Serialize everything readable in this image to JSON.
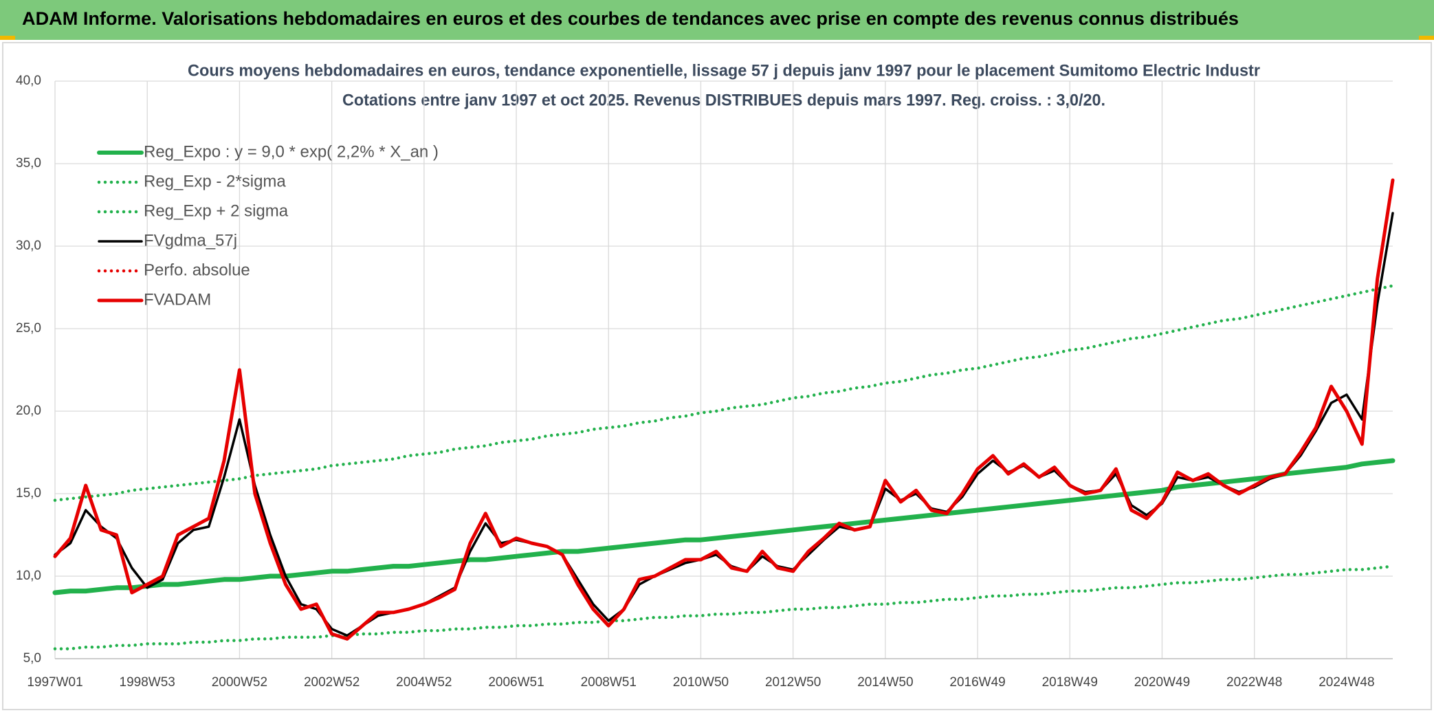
{
  "banner": "ADAM Informe. Valorisations hebdomadaires en euros et des courbes de tendances avec prise en compte des revenus connus distribués",
  "chart_data": {
    "type": "line",
    "title": "Cours moyens hebdomadaires en euros, tendance exponentielle, lissage 57 j depuis janv 1997 pour le placement Sumitomo Electric Industr",
    "subtitle": "Cotations entre janv 1997 et oct 2025. Revenus DISTRIBUES depuis mars 1997. Reg. croiss. : 3,0/20.",
    "categories": [
      "1997W01",
      null,
      null,
      null,
      null,
      null,
      "1998W53",
      null,
      null,
      null,
      null,
      null,
      "2000W52",
      null,
      null,
      null,
      null,
      null,
      "2002W52",
      null,
      null,
      null,
      null,
      null,
      "2004W52",
      null,
      null,
      null,
      null,
      null,
      "2006W51",
      null,
      null,
      null,
      null,
      null,
      "2008W51",
      null,
      null,
      null,
      null,
      null,
      "2010W50",
      null,
      null,
      null,
      null,
      null,
      "2012W50",
      null,
      null,
      null,
      null,
      null,
      "2014W50",
      null,
      null,
      null,
      null,
      null,
      "2016W49",
      null,
      null,
      null,
      null,
      null,
      "2018W49",
      null,
      null,
      null,
      null,
      null,
      "2020W49",
      null,
      null,
      null,
      null,
      null,
      "2022W48",
      null,
      null,
      null,
      null,
      null,
      "2024W48",
      null,
      null,
      null
    ],
    "ylim": [
      5,
      40
    ],
    "yticks": [
      {
        "value": 5,
        "label": "5,0"
      },
      {
        "value": 10,
        "label": "10,0"
      },
      {
        "value": 15,
        "label": "15,0"
      },
      {
        "value": 20,
        "label": "20,0"
      },
      {
        "value": 25,
        "label": "25,0"
      },
      {
        "value": 30,
        "label": "30,0"
      },
      {
        "value": 35,
        "label": "35,0"
      },
      {
        "value": 40,
        "label": "40,0"
      }
    ],
    "grid": true,
    "legend": "upper left",
    "series": [
      {
        "name": "Reg_Expo : y = 9,0 * exp( 2,2% *  X_an )",
        "color": "#22b14c",
        "style": "solid",
        "values": [
          9.0,
          9.1,
          9.1,
          9.2,
          9.3,
          9.3,
          9.4,
          9.5,
          9.5,
          9.6,
          9.7,
          9.8,
          9.8,
          9.9,
          10.0,
          10.0,
          10.1,
          10.2,
          10.3,
          10.3,
          10.4,
          10.5,
          10.6,
          10.6,
          10.7,
          10.8,
          10.9,
          11.0,
          11.0,
          11.1,
          11.2,
          11.3,
          11.4,
          11.5,
          11.5,
          11.6,
          11.7,
          11.8,
          11.9,
          12.0,
          12.1,
          12.2,
          12.2,
          12.3,
          12.4,
          12.5,
          12.6,
          12.7,
          12.8,
          12.9,
          13.0,
          13.1,
          13.2,
          13.3,
          13.4,
          13.5,
          13.6,
          13.7,
          13.8,
          13.9,
          14.0,
          14.1,
          14.2,
          14.3,
          14.4,
          14.5,
          14.6,
          14.7,
          14.8,
          14.9,
          15.0,
          15.1,
          15.2,
          15.4,
          15.5,
          15.6,
          15.7,
          15.8,
          15.9,
          16.0,
          16.2,
          16.3,
          16.4,
          16.5,
          16.6,
          16.8,
          16.9,
          17.0
        ]
      },
      {
        "name": "Reg_Exp - 2*sigma",
        "color": "#22b14c",
        "style": "dotted",
        "values": [
          5.6,
          5.6,
          5.7,
          5.7,
          5.8,
          5.8,
          5.9,
          5.9,
          5.9,
          6.0,
          6.0,
          6.1,
          6.1,
          6.2,
          6.2,
          6.3,
          6.3,
          6.3,
          6.4,
          6.4,
          6.5,
          6.5,
          6.6,
          6.6,
          6.7,
          6.7,
          6.8,
          6.8,
          6.9,
          6.9,
          7.0,
          7.0,
          7.1,
          7.1,
          7.2,
          7.2,
          7.3,
          7.3,
          7.4,
          7.5,
          7.5,
          7.6,
          7.6,
          7.7,
          7.7,
          7.8,
          7.8,
          7.9,
          8.0,
          8.0,
          8.1,
          8.1,
          8.2,
          8.3,
          8.3,
          8.4,
          8.4,
          8.5,
          8.6,
          8.6,
          8.7,
          8.8,
          8.8,
          8.9,
          8.9,
          9.0,
          9.1,
          9.1,
          9.2,
          9.3,
          9.3,
          9.4,
          9.5,
          9.6,
          9.6,
          9.7,
          9.8,
          9.8,
          9.9,
          10.0,
          10.1,
          10.1,
          10.2,
          10.3,
          10.4,
          10.4,
          10.5,
          10.6
        ]
      },
      {
        "name": "Reg_Exp + 2 sigma",
        "color": "#22b14c",
        "style": "dotted",
        "values": [
          14.6,
          14.7,
          14.8,
          14.9,
          15.0,
          15.2,
          15.3,
          15.4,
          15.5,
          15.6,
          15.7,
          15.8,
          15.9,
          16.1,
          16.2,
          16.3,
          16.4,
          16.5,
          16.7,
          16.8,
          16.9,
          17.0,
          17.1,
          17.3,
          17.4,
          17.5,
          17.7,
          17.8,
          17.9,
          18.1,
          18.2,
          18.3,
          18.5,
          18.6,
          18.7,
          18.9,
          19.0,
          19.1,
          19.3,
          19.4,
          19.6,
          19.7,
          19.9,
          20.0,
          20.2,
          20.3,
          20.4,
          20.6,
          20.8,
          20.9,
          21.1,
          21.2,
          21.4,
          21.5,
          21.7,
          21.8,
          22.0,
          22.2,
          22.3,
          22.5,
          22.6,
          22.8,
          23.0,
          23.2,
          23.3,
          23.5,
          23.7,
          23.8,
          24.0,
          24.2,
          24.4,
          24.5,
          24.7,
          24.9,
          25.1,
          25.3,
          25.5,
          25.6,
          25.8,
          26.0,
          26.2,
          26.4,
          26.6,
          26.8,
          27.0,
          27.2,
          27.4,
          27.6
        ]
      },
      {
        "name": "FVgdma_57j",
        "color": "#000000",
        "style": "solid",
        "values": [
          11.3,
          12.0,
          14.0,
          13.0,
          12.3,
          10.5,
          9.3,
          9.8,
          12.0,
          12.8,
          13.0,
          16.0,
          19.5,
          15.5,
          12.5,
          10.0,
          8.3,
          8.0,
          6.8,
          6.4,
          7.0,
          7.6,
          7.8,
          8.0,
          8.3,
          8.8,
          9.3,
          11.5,
          13.2,
          12.0,
          12.2,
          12.0,
          11.8,
          11.3,
          9.8,
          8.3,
          7.3,
          8.0,
          9.5,
          10.0,
          10.4,
          10.8,
          11.0,
          11.3,
          10.6,
          10.3,
          11.2,
          10.6,
          10.4,
          11.3,
          12.2,
          13.0,
          12.8,
          13.0,
          15.3,
          14.6,
          15.0,
          14.1,
          13.9,
          14.8,
          16.2,
          17.0,
          16.3,
          16.7,
          16.0,
          16.4,
          15.5,
          15.1,
          15.2,
          16.2,
          14.3,
          13.7,
          14.4,
          16.0,
          15.8,
          16.0,
          15.5,
          15.1,
          15.4,
          15.9,
          16.2,
          17.3,
          18.8,
          20.5,
          21.0,
          19.5,
          26.5,
          32.0
        ]
      },
      {
        "name": "Perfo. absolue",
        "color": "#e60000",
        "style": "dotted",
        "values": [
          11.2,
          12.3,
          15.5,
          12.8,
          12.5,
          9.0,
          9.5,
          10.0,
          12.5,
          13.0,
          13.5,
          17.0,
          22.5,
          15.0,
          12.0,
          9.5,
          8.0,
          8.3,
          6.5,
          6.2,
          7.0,
          7.8,
          7.8,
          8.0,
          8.3,
          8.7,
          9.2,
          12.0,
          13.8,
          11.8,
          12.3,
          12.0,
          11.8,
          11.3,
          9.5,
          8.0,
          7.0,
          8.0,
          9.8,
          10.0,
          10.5,
          11.0,
          11.0,
          11.5,
          10.5,
          10.3,
          11.5,
          10.5,
          10.3,
          11.5,
          12.3,
          13.2,
          12.8,
          13.0,
          15.8,
          14.5,
          15.2,
          14.0,
          13.8,
          15.0,
          16.5,
          17.3,
          16.2,
          16.8,
          16.0,
          16.6,
          15.5,
          15.0,
          15.2,
          16.5,
          14.0,
          13.5,
          14.5,
          16.3,
          15.8,
          16.2,
          15.5,
          15.0,
          15.5,
          16.0,
          16.2,
          17.5,
          19.0,
          21.5,
          20.0,
          18.0,
          28.0,
          34.0
        ]
      },
      {
        "name": "FVADAM",
        "color": "#e60000",
        "style": "solid",
        "values": [
          11.2,
          12.3,
          15.5,
          12.8,
          12.5,
          9.0,
          9.5,
          10.0,
          12.5,
          13.0,
          13.5,
          17.0,
          22.5,
          15.0,
          12.0,
          9.5,
          8.0,
          8.3,
          6.5,
          6.2,
          7.0,
          7.8,
          7.8,
          8.0,
          8.3,
          8.7,
          9.2,
          12.0,
          13.8,
          11.8,
          12.3,
          12.0,
          11.8,
          11.3,
          9.5,
          8.0,
          7.0,
          8.0,
          9.8,
          10.0,
          10.5,
          11.0,
          11.0,
          11.5,
          10.5,
          10.3,
          11.5,
          10.5,
          10.3,
          11.5,
          12.3,
          13.2,
          12.8,
          13.0,
          15.8,
          14.5,
          15.2,
          14.0,
          13.8,
          15.0,
          16.5,
          17.3,
          16.2,
          16.8,
          16.0,
          16.6,
          15.5,
          15.0,
          15.2,
          16.5,
          14.0,
          13.5,
          14.5,
          16.3,
          15.8,
          16.2,
          15.5,
          15.0,
          15.5,
          16.0,
          16.2,
          17.5,
          19.0,
          21.5,
          20.0,
          18.0,
          28.0,
          34.0
        ]
      }
    ]
  }
}
